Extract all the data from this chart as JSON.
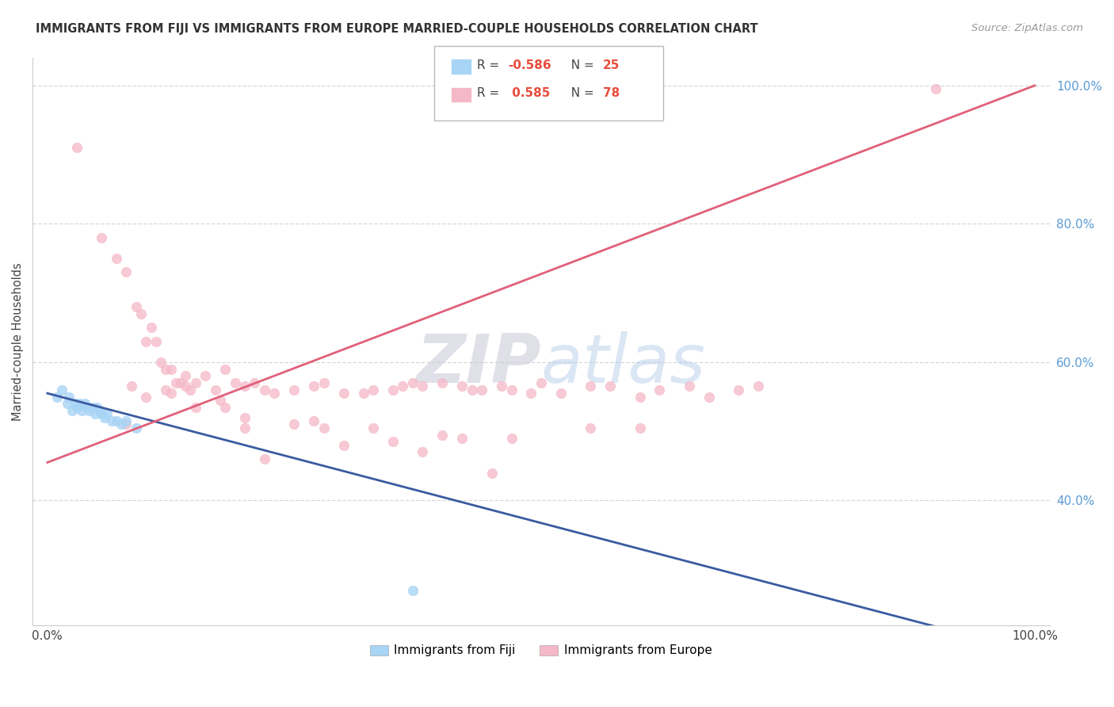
{
  "title": "IMMIGRANTS FROM FIJI VS IMMIGRANTS FROM EUROPE MARRIED-COUPLE HOUSEHOLDS CORRELATION CHART",
  "source": "Source: ZipAtlas.com",
  "ylabel": "Married-couple Households",
  "legend_label1": "Immigrants from Fiji",
  "legend_label2": "Immigrants from Europe",
  "fiji_R": "-0.586",
  "fiji_N": "25",
  "europe_R": "0.585",
  "europe_N": "78",
  "fiji_color": "#A8D4F5",
  "europe_color": "#F5B8C8",
  "fiji_line_color": "#3A5BA0",
  "europe_line_color": "#E0607A",
  "watermark_zip": "ZIP",
  "watermark_atlas": "atlas",
  "background": "#FFFFFF",
  "grid_color": "#D8D8D8",
  "right_tick_color": "#5B9BD5",
  "fiji_x": [
    1.0,
    1.5,
    2.0,
    2.2,
    2.5,
    2.8,
    3.0,
    3.2,
    3.5,
    3.8,
    4.0,
    4.2,
    4.5,
    4.8,
    5.0,
    5.2,
    5.5,
    5.8,
    6.0,
    6.5,
    7.0,
    7.5,
    8.0,
    9.0,
    37.0
  ],
  "fiji_y": [
    0.55,
    0.56,
    0.54,
    0.55,
    0.53,
    0.54,
    0.535,
    0.54,
    0.53,
    0.54,
    0.535,
    0.53,
    0.535,
    0.525,
    0.535,
    0.53,
    0.525,
    0.52,
    0.525,
    0.515,
    0.515,
    0.51,
    0.515,
    0.505,
    0.27
  ],
  "europe_x": [
    3.0,
    5.5,
    7.0,
    8.0,
    9.0,
    9.5,
    10.0,
    10.5,
    11.0,
    11.5,
    12.0,
    12.5,
    13.0,
    13.5,
    14.0,
    14.5,
    15.0,
    16.0,
    17.0,
    18.0,
    19.0,
    20.0,
    21.0,
    22.0,
    23.0,
    25.0,
    27.0,
    28.0,
    30.0,
    32.0,
    33.0,
    35.0,
    36.0,
    37.0,
    38.0,
    40.0,
    42.0,
    43.0,
    44.0,
    46.0,
    47.0,
    49.0,
    50.0,
    52.0,
    55.0,
    57.0,
    60.0,
    62.0,
    65.0,
    67.0,
    70.0,
    72.0,
    40.0,
    22.0,
    30.0,
    10.0,
    8.0,
    45.0,
    25.0,
    15.0,
    20.0,
    38.0,
    18.0,
    12.0,
    35.0,
    28.0,
    55.0,
    47.0,
    42.0,
    33.0,
    60.0,
    20.0,
    14.0,
    27.0,
    8.5,
    12.5,
    17.5,
    90.0
  ],
  "europe_y": [
    0.91,
    0.78,
    0.75,
    0.73,
    0.68,
    0.67,
    0.63,
    0.65,
    0.63,
    0.6,
    0.59,
    0.59,
    0.57,
    0.57,
    0.58,
    0.56,
    0.57,
    0.58,
    0.56,
    0.59,
    0.57,
    0.565,
    0.57,
    0.56,
    0.555,
    0.56,
    0.565,
    0.57,
    0.555,
    0.555,
    0.56,
    0.56,
    0.565,
    0.57,
    0.565,
    0.57,
    0.565,
    0.56,
    0.56,
    0.565,
    0.56,
    0.555,
    0.57,
    0.555,
    0.565,
    0.565,
    0.55,
    0.56,
    0.565,
    0.55,
    0.56,
    0.565,
    0.495,
    0.46,
    0.48,
    0.55,
    0.51,
    0.44,
    0.51,
    0.535,
    0.52,
    0.47,
    0.535,
    0.56,
    0.485,
    0.505,
    0.505,
    0.49,
    0.49,
    0.505,
    0.505,
    0.505,
    0.565,
    0.515,
    0.565,
    0.555,
    0.545,
    0.995
  ],
  "xmin": 0.0,
  "xmax": 100.0,
  "ymin": 0.22,
  "ymax": 1.04,
  "ytick_vals": [
    0.4,
    0.6,
    0.8,
    1.0
  ],
  "ytick_labels": [
    "40.0%",
    "60.0%",
    "80.0%",
    "100.0%"
  ]
}
